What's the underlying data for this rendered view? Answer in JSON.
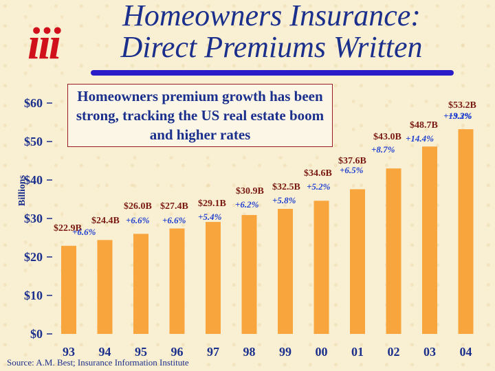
{
  "title_line1": "Homeowners Insurance:",
  "title_line2": "Direct Premiums Written",
  "logo_text": "iii",
  "callout": "Homeowners premium growth has been strong, tracking the US real estate boom and higher rates",
  "source": "Source: A.M. Best; Insurance Information Institute",
  "colors": {
    "bar": "#f9a53e",
    "text": "#1b2f8c",
    "growth": "#1f3fd0",
    "accent": "#d0101a"
  },
  "chart_data": {
    "type": "bar",
    "ylabel": "Billions",
    "ylim": [
      0,
      60
    ],
    "yticks": [
      0,
      10,
      20,
      30,
      40,
      50,
      60
    ],
    "ytick_labels": [
      "$0",
      "$10",
      "$20",
      "$30",
      "$40",
      "$50",
      "$60"
    ],
    "categories": [
      "93",
      "94",
      "95",
      "96",
      "97",
      "98",
      "99",
      "00",
      "01",
      "02",
      "03",
      "04"
    ],
    "values": [
      22.9,
      24.4,
      26.0,
      27.4,
      29.1,
      30.9,
      32.5,
      34.6,
      37.6,
      43.0,
      48.7,
      53.2
    ],
    "value_labels": [
      "$22.9B",
      "$24.4B",
      "$26.0B",
      "$27.4B",
      "$29.1B",
      "$30.9B",
      "$32.5B",
      "$34.6B",
      "$37.6B",
      "$43.0B",
      "$48.7B",
      "$53.2B"
    ],
    "growth_labels": [
      "+6.6%",
      "+6.6%",
      "+6.6%",
      "+5.4%",
      "+6.2%",
      "+5.8%",
      "+5.2%",
      "+6.5%",
      "+8.7%",
      "+14.4%",
      "+13.3%",
      "+9.2%"
    ],
    "grid": false
  }
}
